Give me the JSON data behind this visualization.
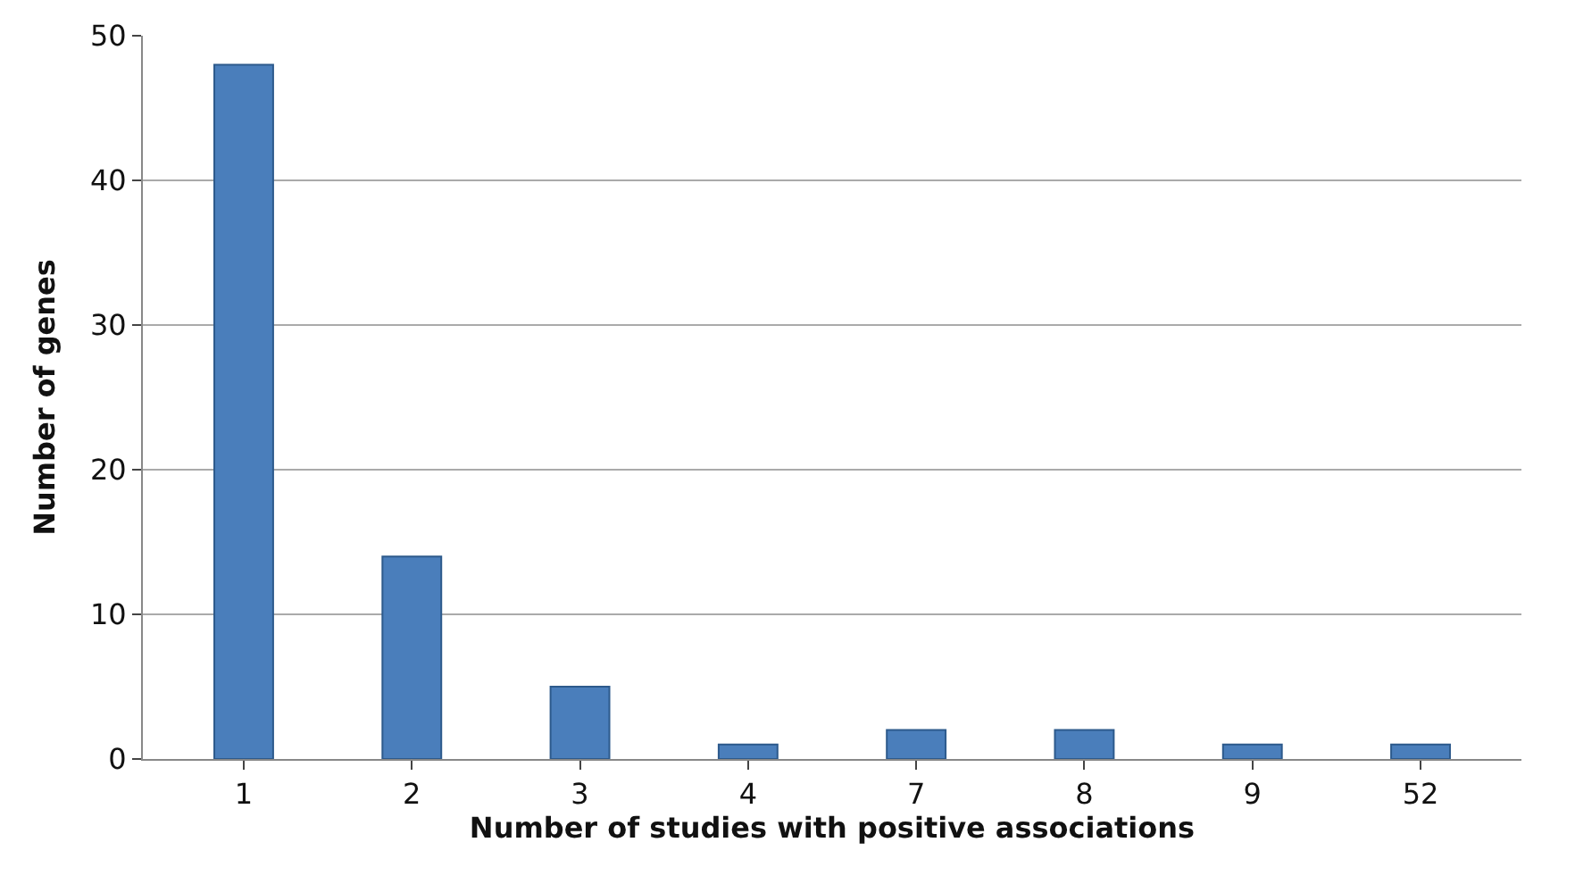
{
  "chart_data": {
    "type": "bar",
    "xlabel": "Number of studies with positive associations",
    "ylabel": "Number of genes",
    "categories": [
      "1",
      "2",
      "3",
      "4",
      "7",
      "8",
      "9",
      "52"
    ],
    "values": [
      48,
      14,
      5,
      1,
      2,
      2,
      1,
      1
    ],
    "color": "#4a7ebb",
    "ylim": [
      0,
      50
    ],
    "yticks": [
      0,
      10,
      20,
      30,
      40,
      50
    ],
    "grid": "y"
  }
}
